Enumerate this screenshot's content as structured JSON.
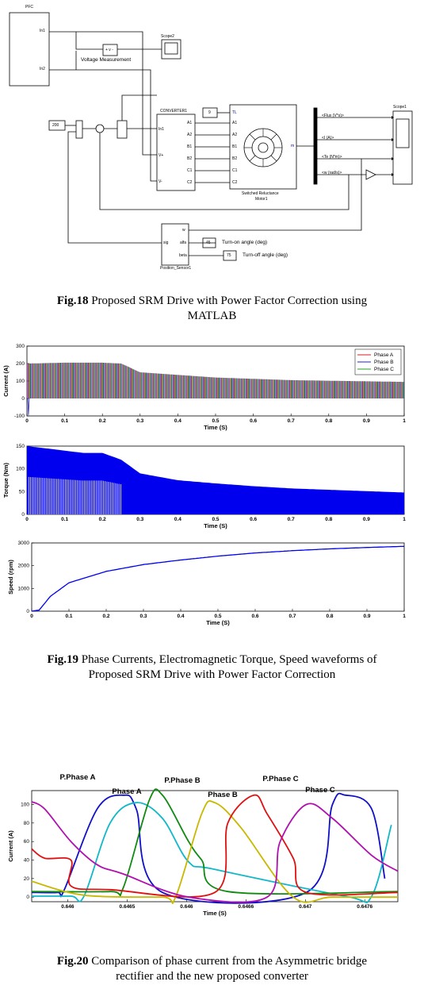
{
  "fig18": {
    "caption_num": "Fig.18",
    "caption_line1": " Proposed SRM Drive with Power Factor Correction using",
    "caption_line2": "MATLAB",
    "blocks": {
      "pfc": "PFC",
      "pfc_in1": "In1",
      "pfc_in2": "In2",
      "vmeas_label": "Voltage Measurement",
      "vmeas_inner": "+ v -",
      "scope2": "Scope2",
      "const200": "200",
      "converter": "CONVERTER1",
      "conv_in1": "In1",
      "conv_vplus": "V+",
      "conv_vminus": "V-",
      "conv_ports": [
        "A1",
        "A2",
        "B1",
        "B2",
        "C1",
        "C2"
      ],
      "tl_const": "9",
      "motor_tl": "TL",
      "motor_ports": [
        "A1",
        "A2",
        "B1",
        "B2",
        "C1",
        "C2"
      ],
      "motor_m": "m",
      "motor_label1": "Switched Reluctance",
      "motor_label2": "Motor1",
      "bus_signals": [
        "<Flux (V*s)>",
        "<I (A)>",
        "<Te (N*m)>",
        "<w (rad/s)>"
      ],
      "scope1": "Scope1",
      "pos_w": "w",
      "pos_sig": "sig",
      "pos_alfa": "alfa",
      "pos_beta": "beta",
      "pos_label": "Position_Sensor1",
      "turn_on_val": "45",
      "turn_on_label": "Turn-on angle (deg)",
      "turn_off_val": "75",
      "turn_off_label": "Turn-off angle (deg)"
    }
  },
  "fig19": {
    "caption_num": "Fig.19",
    "caption_line1": " Phase Currents, Electromagnetic Torque, Speed waveforms of",
    "caption_line2": "Proposed SRM Drive with Power Factor Correction"
  },
  "fig20": {
    "caption_num": "Fig.20",
    "caption_line1": " Comparison of phase current from the Asymmetric bridge",
    "caption_line2": "rectifier and the new proposed converter",
    "phase_labels": [
      "P.Phase A",
      "Phase A",
      "P.Phase B",
      "Phase B",
      "P.Phase C",
      "Phase C"
    ]
  },
  "chart_data": [
    {
      "type": "line",
      "title": "",
      "xlabel": "Time (S)",
      "ylabel": "Current (A)",
      "xlim": [
        0,
        1
      ],
      "ylim": [
        -100,
        300
      ],
      "xticks": [
        "0",
        "0.1",
        "0.2",
        "0.3",
        "0.4",
        "0.5",
        "0.6",
        "0.7",
        "0.8",
        "0.9",
        "1"
      ],
      "yticks": [
        "-100",
        "0",
        "100",
        "200",
        "300"
      ],
      "legend_position": "top-right",
      "series": [
        {
          "name": "Phase A",
          "color": "#d02020",
          "x": [
            0,
            0.1,
            0.2,
            0.25,
            0.3,
            0.5,
            0.7,
            1.0
          ],
          "peak": [
            200,
            205,
            205,
            200,
            150,
            120,
            105,
            95
          ]
        },
        {
          "name": "Phase B",
          "color": "#2020d0",
          "x": [
            0,
            0.1,
            0.2,
            0.25,
            0.3,
            0.5,
            0.7,
            1.0
          ],
          "peak": [
            200,
            205,
            205,
            200,
            150,
            120,
            105,
            95
          ]
        },
        {
          "name": "Phase C",
          "color": "#20a020",
          "x": [
            0,
            0.1,
            0.2,
            0.25,
            0.3,
            0.5,
            0.7,
            1.0
          ],
          "peak": [
            200,
            205,
            205,
            200,
            150,
            120,
            105,
            95
          ]
        }
      ]
    },
    {
      "type": "line",
      "title": "",
      "xlabel": "Time (S)",
      "ylabel": "Torque (Nm)",
      "xlim": [
        0,
        1
      ],
      "ylim": [
        0,
        150
      ],
      "xticks": [
        "0",
        "0.1",
        "0.2",
        "0.3",
        "0.4",
        "0.5",
        "0.6",
        "0.7",
        "0.8",
        "0.9",
        "1"
      ],
      "yticks": [
        "0",
        "50",
        "100",
        "150"
      ],
      "series": [
        {
          "name": "",
          "color": "#0000ee",
          "x": [
            0,
            0.05,
            0.1,
            0.15,
            0.2,
            0.25,
            0.3,
            0.4,
            0.5,
            0.6,
            0.7,
            0.8,
            0.9,
            1.0
          ],
          "upper": [
            150,
            145,
            140,
            135,
            135,
            120,
            90,
            75,
            68,
            62,
            57,
            54,
            51,
            48
          ],
          "lower": [
            0,
            0,
            0,
            0,
            0,
            0,
            0,
            0,
            0,
            0,
            0,
            0,
            0,
            0
          ]
        }
      ]
    },
    {
      "type": "line",
      "title": "",
      "xlabel": "Time (S)",
      "ylabel": "Speed (rpm)",
      "xlim": [
        0,
        1
      ],
      "ylim": [
        0,
        3000
      ],
      "xticks": [
        "0",
        "0.1",
        "0.2",
        "0.3",
        "0.4",
        "0.5",
        "0.6",
        "0.7",
        "0.8",
        "0.9",
        "1"
      ],
      "yticks": [
        "0",
        "1000",
        "2000",
        "3000"
      ],
      "series": [
        {
          "name": "",
          "color": "#0000ee",
          "x": [
            0,
            0.02,
            0.05,
            0.1,
            0.2,
            0.3,
            0.4,
            0.5,
            0.6,
            0.7,
            0.8,
            0.9,
            1.0
          ],
          "y": [
            0,
            50,
            650,
            1250,
            1750,
            2050,
            2250,
            2420,
            2560,
            2660,
            2740,
            2800,
            2850
          ]
        }
      ]
    },
    {
      "type": "line",
      "title": "",
      "xlabel": "Time (S)",
      "ylabel": "Current (A)",
      "xlim": [
        0.6451,
        0.6479
      ],
      "ylim": [
        -5,
        115
      ],
      "xticks": [
        "0.646",
        "0.6465",
        "0.646",
        "0.6466",
        "0.647",
        "0.6476"
      ],
      "yticks": [
        "0",
        "20",
        "40",
        "60",
        "80",
        "100"
      ],
      "series": [
        {
          "name": "P.Phase A",
          "color": "#1010c8",
          "x": [
            0.6451,
            0.6453,
            0.64535,
            0.6456,
            0.6458,
            0.6459,
            0.6461,
            0.6472,
            0.6474,
            0.6475,
            0.6477,
            0.6478
          ],
          "y": [
            5,
            5,
            8,
            95,
            110,
            95,
            5,
            5,
            100,
            110,
            95,
            20
          ]
        },
        {
          "name": "Phase A",
          "color": "#10b8c8",
          "x": [
            0.6451,
            0.6454,
            0.6455,
            0.6457,
            0.6459,
            0.6461,
            0.6463,
            0.6465,
            0.6475,
            0.6477,
            0.64785
          ],
          "y": [
            1,
            1,
            1,
            80,
            102,
            85,
            38,
            30,
            1,
            1,
            78
          ]
        },
        {
          "name": "P.Phase B",
          "color": "#108a10",
          "x": [
            0.6451,
            0.6457,
            0.6458,
            0.646,
            0.6461,
            0.6463,
            0.6464,
            0.6466,
            0.6479
          ],
          "y": [
            6,
            6,
            10,
            105,
            110,
            60,
            40,
            6,
            6
          ]
        },
        {
          "name": "Phase B",
          "color": "#c8b800",
          "x": [
            0.6451,
            0.6455,
            0.6461,
            0.6462,
            0.6464,
            0.6465,
            0.6467,
            0.6471,
            0.6474,
            0.6479
          ],
          "y": [
            17,
            2,
            0,
            0,
            90,
            102,
            75,
            0,
            0,
            0
          ]
        },
        {
          "name": "P.Phase C",
          "color": "#e01010",
          "x": [
            0.6451,
            0.6452,
            0.6454,
            0.6454,
            0.6457,
            0.6465,
            0.6466,
            0.6468,
            0.6469,
            0.6471,
            0.6472,
            0.6479
          ],
          "y": [
            52,
            42,
            40,
            12,
            8,
            5,
            80,
            110,
            90,
            42,
            5,
            5
          ]
        },
        {
          "name": "Phase C",
          "color": "#b010b0",
          "x": [
            0.6451,
            0.6452,
            0.6454,
            0.6456,
            0.6458,
            0.6463,
            0.6469,
            0.647,
            0.6472,
            0.6474,
            0.6477,
            0.6479
          ],
          "y": [
            103,
            95,
            60,
            35,
            25,
            0,
            0,
            60,
            100,
            85,
            45,
            28
          ]
        }
      ]
    }
  ]
}
